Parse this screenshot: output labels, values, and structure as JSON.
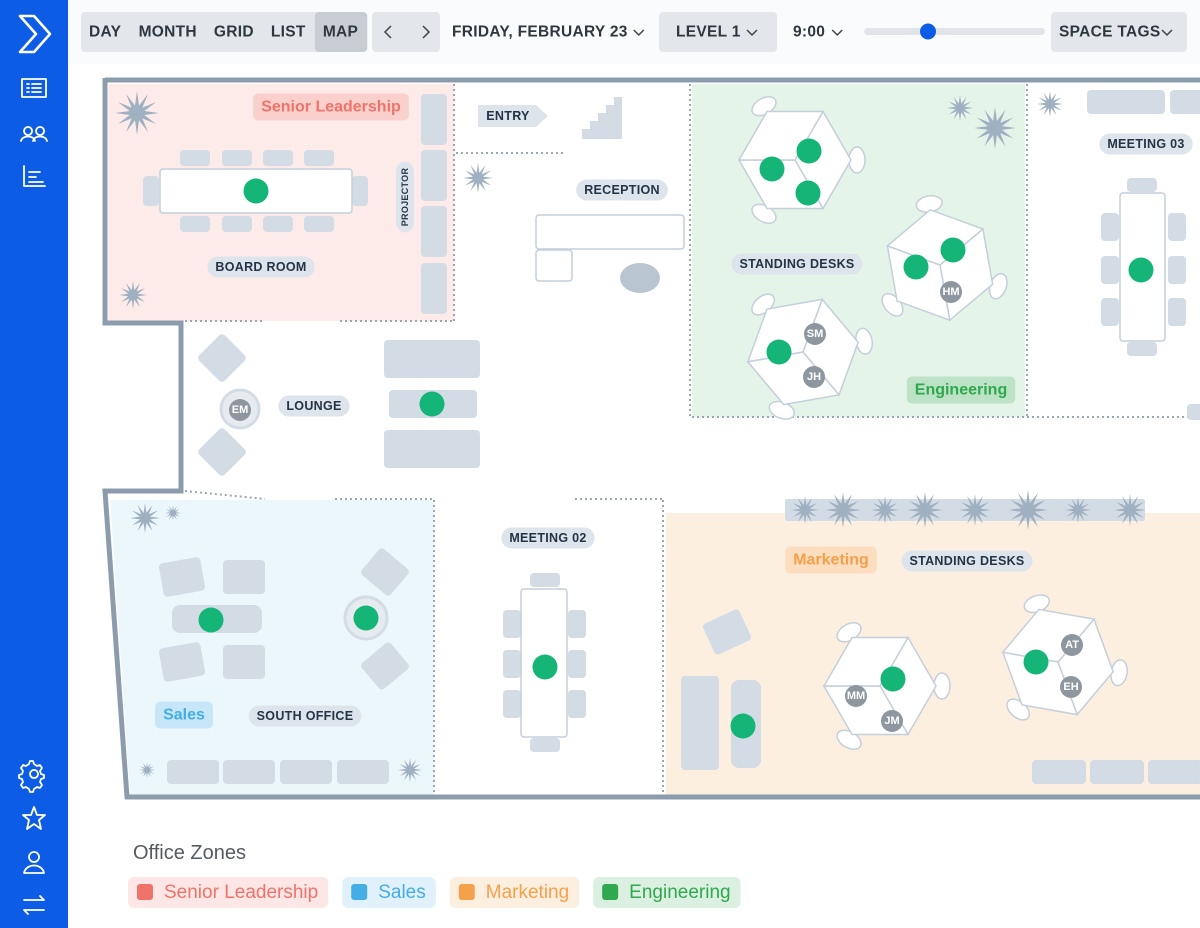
{
  "toolbar": {
    "views": [
      {
        "label": "DAY"
      },
      {
        "label": "MONTH"
      },
      {
        "label": "GRID"
      },
      {
        "label": "LIST"
      },
      {
        "label": "MAP",
        "active": true
      }
    ],
    "date": "FRIDAY, FEBRUARY 23",
    "level": "LEVEL 1",
    "time": "9:00",
    "tags": "SPACE TAGS"
  },
  "map": {
    "zones": [
      {
        "label": "Senior Leadership",
        "color": "#f0736a"
      },
      {
        "label": "Engineering",
        "color": "#2fa84f"
      },
      {
        "label": "Marketing",
        "color": "#f5a04a"
      },
      {
        "label": "Sales",
        "color": "#45ade6"
      }
    ],
    "rooms": [
      "BOARD ROOM",
      "PROJECTOR",
      "ENTRY",
      "RECEPTION",
      "STANDING DESKS",
      "MEETING 03",
      "LOUNGE",
      "MEETING 02",
      "STANDING DESKS",
      "SOUTH OFFICE"
    ],
    "people": [
      "HM",
      "SM",
      "JH",
      "EM",
      "MM",
      "JM",
      "AT",
      "EH"
    ]
  },
  "legend": {
    "title": "Office Zones",
    "items": [
      {
        "label": "Senior Leadership",
        "color": "#f0736a"
      },
      {
        "label": "Sales",
        "color": "#45ade6"
      },
      {
        "label": "Marketing",
        "color": "#f5a04a"
      },
      {
        "label": "Engineering",
        "color": "#2fa84f"
      }
    ]
  }
}
